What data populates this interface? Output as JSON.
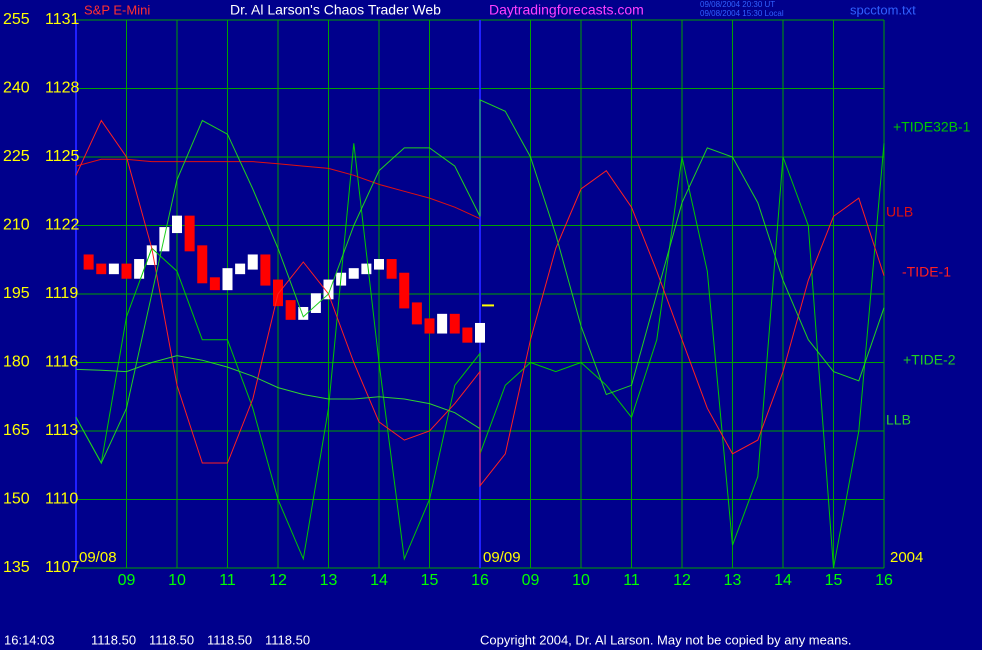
{
  "chart_data": {
    "type": "line",
    "header": {
      "instrument": "S&P E-Mini",
      "title": "Dr. Al Larson's Chaos Trader Web",
      "site": "Daytradingforecasts.com",
      "stamp_ut": "09/08/2004 20:30 UT",
      "stamp_local": "09/08/2004 15:30 Local",
      "file": "spcctom.txt"
    },
    "dates": [
      "09/08",
      "09/09",
      "2004"
    ],
    "ylim": [
      135,
      255
    ],
    "yticks": [
      135,
      150,
      165,
      180,
      195,
      210,
      225,
      240,
      255
    ],
    "y2lim": [
      1107,
      1131
    ],
    "y2ticks": [
      1107,
      1110,
      1113,
      1116,
      1119,
      1122,
      1125,
      1128,
      1131
    ],
    "xlim": [
      0,
      16
    ],
    "xticks": [
      {
        "value": 1,
        "label": "09"
      },
      {
        "value": 2,
        "label": "10"
      },
      {
        "value": 3,
        "label": "11"
      },
      {
        "value": 4,
        "label": "12"
      },
      {
        "value": 5,
        "label": "13"
      },
      {
        "value": 6,
        "label": "14"
      },
      {
        "value": 7,
        "label": "15"
      },
      {
        "value": 8,
        "label": "16"
      },
      {
        "value": 9,
        "label": "09"
      },
      {
        "value": 10,
        "label": "10"
      },
      {
        "value": 11,
        "label": "11"
      },
      {
        "value": 12,
        "label": "12"
      },
      {
        "value": 13,
        "label": "13"
      },
      {
        "value": 14,
        "label": "14"
      },
      {
        "value": 15,
        "label": "15"
      },
      {
        "value": 16,
        "label": "16"
      }
    ],
    "grid": true,
    "x": [
      0,
      0.5,
      1,
      1.5,
      2,
      2.5,
      3,
      3.5,
      4,
      4.5,
      5,
      5.5,
      6,
      6.5,
      7,
      7.5,
      8,
      8,
      8.5,
      9,
      9.5,
      10,
      10.5,
      11,
      11.5,
      12,
      12.5,
      13,
      13.5,
      14,
      14.5,
      15,
      15.5,
      16
    ],
    "series": [
      {
        "name": "+TIDE32B-1",
        "color": "#00c800",
        "values": [
          168,
          158,
          190,
          205,
          200,
          185,
          185,
          170,
          150,
          137,
          170,
          228,
          180,
          137,
          150,
          175,
          182,
          160,
          175,
          180,
          178,
          180,
          175,
          168,
          185,
          225,
          200,
          140,
          155,
          225,
          210,
          135,
          165,
          228
        ]
      },
      {
        "name": "ULB",
        "color": "#e01010",
        "values": [
          223,
          224.5,
          224.5,
          224,
          224,
          224,
          224,
          224,
          223.5,
          223,
          222.5,
          221,
          219,
          217.5,
          216,
          214,
          211.5,
          null,
          null,
          null,
          null,
          null,
          null,
          null,
          null,
          null,
          null,
          null,
          null,
          null,
          null,
          null,
          null,
          null
        ]
      },
      {
        "name": "-TIDE-1",
        "color": "#ff2020",
        "values": [
          221,
          233,
          225,
          205,
          175,
          158,
          158,
          172,
          195,
          202,
          195,
          180,
          167,
          163,
          165,
          171,
          178,
          153,
          160,
          185,
          205,
          218,
          222,
          214,
          200,
          185,
          170,
          160,
          163,
          178,
          198,
          212,
          216,
          199
        ]
      },
      {
        "name": "+TIDE-2",
        "color": "#20d020",
        "values": [
          168,
          158,
          170,
          195,
          220,
          233,
          230,
          218,
          205,
          190,
          195,
          210,
          222,
          227,
          227,
          223,
          212,
          237.5,
          235,
          225,
          208,
          188,
          173,
          175,
          195,
          215,
          227,
          225,
          215,
          198,
          185,
          178,
          176,
          192
        ]
      },
      {
        "name": "LLB",
        "color": "#30d030",
        "values": [
          178.5,
          178.3,
          178,
          180,
          181.5,
          180.5,
          179,
          177,
          174.5,
          173,
          172,
          172,
          172.5,
          172,
          171,
          169,
          165.5,
          null,
          null,
          null,
          null,
          null,
          null,
          null,
          null,
          null,
          null,
          null,
          null,
          null,
          null,
          null,
          null,
          null
        ]
      }
    ],
    "price": {
      "axis": "y2",
      "up_color": "#ffffff",
      "down_color": "#ff0000",
      "x": [
        0,
        0.25,
        0.5,
        0.75,
        1,
        1.25,
        1.5,
        1.75,
        2,
        2.25,
        2.5,
        2.75,
        3,
        3.25,
        3.5,
        3.75,
        4,
        4.25,
        4.5,
        4.75,
        5,
        5.25,
        5.5,
        5.75,
        6,
        6.25,
        6.5,
        6.75,
        7,
        7.25,
        7.5,
        7.75,
        8
      ],
      "values": [
        1120.6,
        1120.2,
        1120.0,
        1120.2,
        1119.8,
        1120.4,
        1121.0,
        1121.8,
        1122.3,
        1121.0,
        1119.6,
        1119.3,
        1120.0,
        1120.2,
        1120.6,
        1119.5,
        1118.6,
        1118.0,
        1118.3,
        1118.9,
        1119.5,
        1119.8,
        1120.0,
        1120.2,
        1120.4,
        1119.8,
        1118.5,
        1117.8,
        1117.4,
        1118.0,
        1117.4,
        1117.0,
        1117.6
      ]
    },
    "status": {
      "time": "16:14:03",
      "quote": [
        {
          "value": 1118.5,
          "label": "1118.50"
        },
        {
          "value": 1118.5,
          "label": "1118.50"
        },
        {
          "value": 1118.5,
          "label": "1118.50"
        },
        {
          "value": 1118.5,
          "label": "1118.50"
        }
      ]
    },
    "copyright": "Copyright 2004, Dr. Al Larson. May not be copied by any means."
  }
}
